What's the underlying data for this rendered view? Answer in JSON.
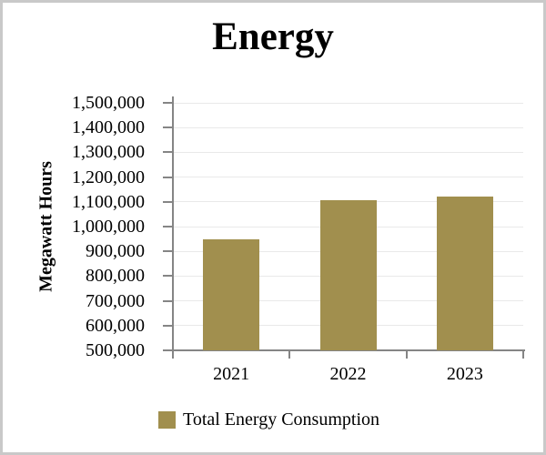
{
  "window": {
    "background": "#ffffff",
    "border_color": "#c9c9c9"
  },
  "chart_data": {
    "type": "bar",
    "title": "Energy",
    "ylabel": "Megawatt Hours",
    "xlabel": "",
    "categories": [
      "2021",
      "2022",
      "2023"
    ],
    "series": [
      {
        "name": "Total Energy Consumption",
        "values": [
          950000,
          1105000,
          1120000
        ],
        "color": "#A18F4E"
      }
    ],
    "ylim": [
      500000,
      1500000
    ],
    "ytick_step": 100000,
    "ytick_labels": [
      "500,000",
      "600,000",
      "700,000",
      "800,000",
      "900,000",
      "1,000,000",
      "1,100,000",
      "1,200,000",
      "1,300,000",
      "1,400,000",
      "1,500,000"
    ],
    "grid": true,
    "legend_position": "bottom",
    "axis_color": "#858585",
    "gridline_color": "#e9e9e9",
    "text_color": "#000000"
  },
  "legend": {
    "label": "Total Energy Consumption",
    "swatch_color": "#A18F4E"
  }
}
